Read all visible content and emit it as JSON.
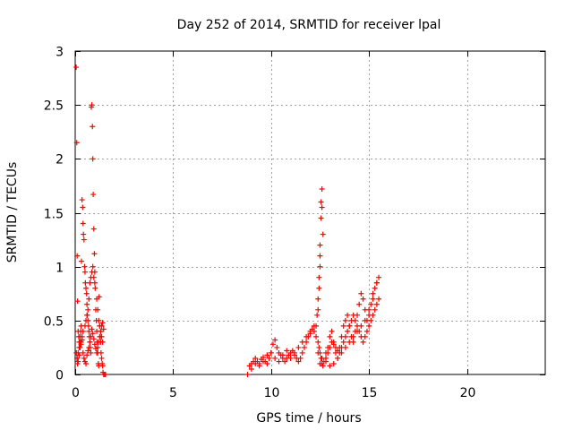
{
  "chart_data": {
    "type": "scatter",
    "title": "Day 252 of 2014, SRMTID for receiver lpal",
    "xlabel": "GPS time / hours",
    "ylabel": "SRMTID / TECUs",
    "xlim": [
      0,
      24
    ],
    "ylim": [
      0,
      3
    ],
    "x_ticks": [
      0,
      5,
      10,
      15,
      20
    ],
    "x_tick_labels": [
      "0",
      "5",
      "10",
      "15",
      "20"
    ],
    "y_ticks": [
      0,
      0.5,
      1,
      1.5,
      2,
      2.5,
      3
    ],
    "y_tick_labels": [
      "0",
      "0.5",
      "1",
      "1.5",
      "2",
      "2.5",
      "3"
    ],
    "grid": true,
    "marker": "+",
    "series": [
      {
        "name": "SRMTID",
        "color": "#ff0000",
        "x": [
          0.05,
          0.08,
          0.1,
          0.12,
          0.15,
          0.18,
          0.2,
          0.22,
          0.25,
          0.28,
          0.3,
          0.32,
          0.35,
          0.38,
          0.4,
          0.42,
          0.45,
          0.48,
          0.5,
          0.52,
          0.55,
          0.58,
          0.6,
          0.62,
          0.65,
          0.68,
          0.7,
          0.72,
          0.75,
          0.78,
          0.8,
          0.82,
          0.85,
          0.88,
          0.9,
          0.92,
          0.95,
          0.98,
          1.0,
          1.02,
          1.05,
          1.08,
          1.1,
          1.12,
          1.15,
          1.18,
          1.2,
          1.22,
          1.25,
          1.28,
          1.3,
          1.32,
          1.35,
          1.38,
          1.4,
          1.42,
          1.45,
          1.5,
          1.55,
          0.06,
          0.09,
          0.12,
          0.15,
          0.2,
          0.25,
          0.3,
          0.35,
          0.4,
          0.5,
          0.55,
          0.6,
          0.65,
          0.7,
          0.75,
          0.8,
          0.85,
          0.9,
          0.95,
          1.0,
          1.1,
          1.15,
          1.2,
          1.25,
          1.3,
          1.35,
          1.4,
          0.1,
          0.15,
          0.2,
          0.25,
          0.3,
          0.35,
          0.4,
          0.45,
          0.5,
          0.55,
          0.6,
          0.65,
          0.7,
          0.75,
          0.8,
          0.85,
          0.9,
          0.95,
          1.0,
          1.05,
          1.1,
          1.15,
          1.2,
          1.25,
          1.3,
          1.35,
          1.4,
          1.45,
          8.8,
          8.9,
          9.0,
          9.1,
          9.2,
          9.3,
          9.4,
          9.5,
          9.6,
          9.7,
          9.8,
          9.9,
          10.0,
          10.1,
          10.2,
          10.3,
          10.4,
          10.5,
          10.6,
          10.7,
          10.8,
          10.9,
          11.0,
          11.1,
          11.2,
          11.3,
          11.4,
          11.5,
          11.6,
          11.7,
          11.8,
          11.9,
          12.0,
          12.1,
          12.2,
          12.3,
          12.4,
          12.45,
          12.5,
          12.55,
          12.6,
          12.65,
          12.7,
          12.8,
          12.9,
          13.0,
          13.1,
          13.2,
          13.3,
          13.4,
          13.5,
          13.6,
          13.7,
          13.8,
          13.9,
          14.0,
          14.1,
          14.2,
          14.3,
          14.4,
          14.5,
          14.6,
          14.7,
          14.8,
          14.9,
          15.0,
          15.1,
          15.2,
          15.3,
          15.4,
          15.5,
          9.0,
          9.2,
          9.4,
          9.6,
          9.8,
          10.0,
          10.2,
          10.4,
          10.6,
          10.8,
          11.0,
          11.2,
          11.4,
          11.6,
          11.8,
          12.0,
          12.2,
          12.4,
          12.5,
          12.6,
          12.8,
          13.0,
          13.2,
          13.4,
          13.6,
          13.8,
          14.0,
          14.2,
          14.4,
          14.6,
          14.8,
          15.0,
          15.2,
          15.4,
          12.4,
          12.45,
          12.5,
          12.5,
          12.55,
          12.55,
          12.6,
          12.6,
          12.65,
          12.5,
          12.45,
          12.4,
          12.35,
          12.3,
          12.8,
          12.9,
          13.0,
          13.1,
          13.2,
          13.3,
          13.4,
          13.5,
          13.6,
          13.7,
          13.8,
          13.9,
          14.0,
          14.1,
          14.2,
          14.3,
          14.4,
          14.5,
          14.6,
          14.7,
          14.8,
          14.9,
          15.0,
          15.1,
          15.2,
          15.3,
          15.4,
          15.5
        ],
        "y": [
          2.85,
          2.15,
          1.1,
          0.68,
          0.4,
          0.35,
          0.3,
          0.25,
          0.35,
          0.4,
          0.45,
          1.05,
          1.62,
          1.55,
          1.4,
          1.3,
          1.25,
          1.0,
          0.95,
          0.85,
          0.8,
          0.75,
          0.65,
          0.55,
          0.5,
          0.45,
          0.4,
          0.35,
          0.3,
          0.25,
          0.2,
          2.48,
          2.5,
          2.3,
          2.0,
          1.67,
          1.35,
          1.12,
          0.95,
          0.8,
          0.6,
          0.5,
          0.4,
          0.3,
          0.2,
          0.1,
          0.08,
          0.72,
          0.45,
          0.35,
          0.3,
          0.2,
          0.15,
          0.1,
          0.08,
          0.02,
          0.0,
          0.0,
          0.0,
          0.2,
          0.15,
          0.1,
          0.12,
          0.18,
          0.25,
          0.3,
          0.35,
          0.4,
          0.45,
          0.5,
          0.55,
          0.6,
          0.7,
          0.85,
          0.9,
          0.95,
          1.0,
          0.9,
          0.85,
          0.7,
          0.6,
          0.5,
          0.45,
          0.4,
          0.35,
          0.3,
          0.15,
          0.2,
          0.25,
          0.3,
          0.28,
          0.32,
          0.2,
          0.15,
          0.12,
          0.1,
          0.18,
          0.22,
          0.25,
          0.3,
          0.35,
          0.42,
          0.38,
          0.33,
          0.28,
          0.24,
          0.2,
          0.25,
          0.3,
          0.35,
          0.4,
          0.45,
          0.48,
          0.42,
          0.0,
          0.08,
          0.1,
          0.12,
          0.15,
          0.12,
          0.1,
          0.14,
          0.16,
          0.12,
          0.1,
          0.15,
          0.2,
          0.28,
          0.32,
          0.25,
          0.2,
          0.18,
          0.15,
          0.12,
          0.15,
          0.18,
          0.2,
          0.22,
          0.18,
          0.15,
          0.12,
          0.15,
          0.2,
          0.25,
          0.3,
          0.35,
          0.38,
          0.42,
          0.4,
          0.35,
          0.3,
          0.25,
          0.2,
          0.15,
          0.1,
          0.08,
          0.12,
          0.15,
          0.2,
          0.25,
          0.3,
          0.28,
          0.25,
          0.22,
          0.2,
          0.25,
          0.3,
          0.35,
          0.4,
          0.45,
          0.5,
          0.55,
          0.5,
          0.45,
          0.4,
          0.35,
          0.3,
          0.35,
          0.4,
          0.45,
          0.5,
          0.55,
          0.6,
          0.65,
          0.7,
          0.05,
          0.1,
          0.08,
          0.12,
          0.18,
          0.2,
          0.15,
          0.12,
          0.18,
          0.22,
          0.15,
          0.2,
          0.25,
          0.3,
          0.35,
          0.4,
          0.45,
          0.2,
          0.1,
          0.15,
          0.12,
          0.08,
          0.1,
          0.15,
          0.2,
          0.25,
          0.3,
          0.35,
          0.4,
          0.45,
          0.5,
          0.6,
          0.7,
          0.85,
          0.6,
          0.8,
          1.0,
          1.2,
          1.45,
          1.6,
          1.72,
          1.55,
          1.3,
          1.1,
          0.9,
          0.7,
          0.55,
          0.45,
          0.2,
          0.25,
          0.35,
          0.4,
          0.3,
          0.2,
          0.15,
          0.25,
          0.35,
          0.45,
          0.5,
          0.55,
          0.45,
          0.35,
          0.3,
          0.4,
          0.55,
          0.65,
          0.75,
          0.7,
          0.6,
          0.5,
          0.55,
          0.65,
          0.75,
          0.8,
          0.85,
          0.9
        ]
      }
    ]
  }
}
